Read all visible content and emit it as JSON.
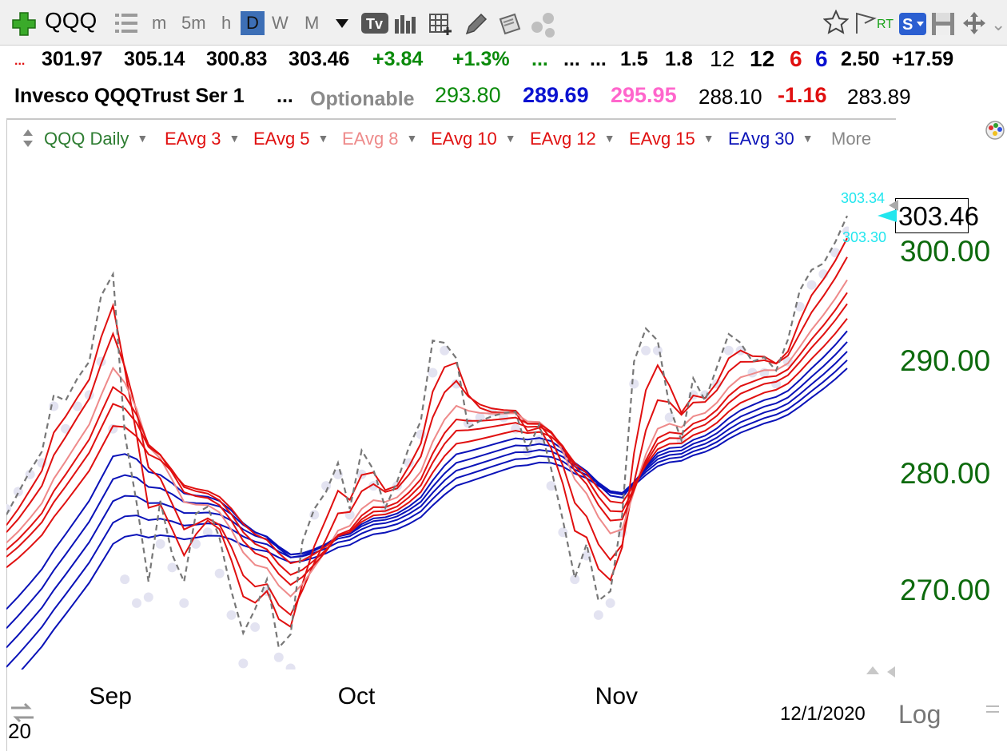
{
  "toolbar": {
    "symbol": "QQQ",
    "intervals": [
      "m",
      "5m",
      "h",
      "D",
      "W",
      "M"
    ],
    "selected_interval": "D",
    "rt_label": "RT",
    "icons": [
      "plus-icon",
      "list-icon",
      "dropdown-icon",
      "tv-icon",
      "bar-chart-icon",
      "grid-add-icon",
      "pencil-icon",
      "notes-icon",
      "dots-icon",
      "star-icon",
      "flag-icon",
      "s-icon",
      "save-icon",
      "move-icon"
    ]
  },
  "quote": {
    "row1": {
      "lead": "...",
      "prev_close": "301.97",
      "high": "305.14",
      "low": "300.83",
      "last": "303.46",
      "change": "+3.84",
      "change_pct": "+1.3%",
      "dots1": "...",
      "dots2": "...",
      "dots3": "...",
      "v1": "1.5",
      "v2": "1.8",
      "v3": "12",
      "v4": "12",
      "v5": "6",
      "v6": "6",
      "v7": "2.50",
      "v8": "+17.59"
    },
    "row2": {
      "name": "Invesco QQQTrust Ser 1",
      "dots": "...",
      "optionable": "Optionable",
      "p1": "293.80",
      "p2": "289.69",
      "p3": "295.95",
      "p4": "288.10",
      "p5": "-1.16",
      "p6": "283.89"
    }
  },
  "legend": {
    "main": "QQQ Daily",
    "items": [
      "EAvg 3",
      "EAvg 5",
      "EAvg 8",
      "EAvg 10",
      "EAvg 12",
      "EAvg 15",
      "EAvg 30"
    ],
    "more": "More"
  },
  "colors": {
    "green": "#0a8a0a",
    "red": "#e01010",
    "salmon": "#ee8a8a",
    "blue": "#0a12b8",
    "pink": "#ff66cc",
    "cyan": "#22e6ee",
    "axis_green": "#0d6a0d"
  },
  "chart_data": {
    "type": "line",
    "title": "QQQ Daily",
    "scale": "log",
    "ylim": [
      263.5,
      308.8
    ],
    "yticks": [
      "300.00",
      "290.00",
      "280.00",
      "270.00"
    ],
    "ytick_values": [
      300,
      290,
      280,
      270
    ],
    "xticks": [
      "Sep",
      "Oct",
      "Nov"
    ],
    "xtick_dates": [
      "2020-09-01",
      "2020-10-01",
      "2020-11-02"
    ],
    "date_label": "12/1/2020",
    "last_price": "303.46",
    "price_tags": [
      "303.34",
      "303.30"
    ],
    "dates": [
      "2020-08-20",
      "2020-08-21",
      "2020-08-24",
      "2020-08-25",
      "2020-08-26",
      "2020-08-27",
      "2020-08-28",
      "2020-08-31",
      "2020-09-01",
      "2020-09-02",
      "2020-09-03",
      "2020-09-04",
      "2020-09-08",
      "2020-09-09",
      "2020-09-10",
      "2020-09-11",
      "2020-09-14",
      "2020-09-15",
      "2020-09-16",
      "2020-09-17",
      "2020-09-18",
      "2020-09-21",
      "2020-09-22",
      "2020-09-23",
      "2020-09-24",
      "2020-09-25",
      "2020-09-28",
      "2020-09-29",
      "2020-09-30",
      "2020-10-01",
      "2020-10-02",
      "2020-10-05",
      "2020-10-06",
      "2020-10-07",
      "2020-10-08",
      "2020-10-09",
      "2020-10-12",
      "2020-10-13",
      "2020-10-14",
      "2020-10-15",
      "2020-10-16",
      "2020-10-19",
      "2020-10-20",
      "2020-10-21",
      "2020-10-22",
      "2020-10-23",
      "2020-10-26",
      "2020-10-27",
      "2020-10-28",
      "2020-10-29",
      "2020-10-30",
      "2020-11-02",
      "2020-11-03",
      "2020-11-04",
      "2020-11-05",
      "2020-11-06",
      "2020-11-09",
      "2020-11-10",
      "2020-11-11",
      "2020-11-12",
      "2020-11-13",
      "2020-11-16",
      "2020-11-17",
      "2020-11-18",
      "2020-11-19",
      "2020-11-20",
      "2020-11-23",
      "2020-11-24",
      "2020-11-25",
      "2020-11-27",
      "2020-11-30",
      "2020-12-01"
    ],
    "close": [
      276.5,
      278.4,
      280.3,
      282.0,
      287.0,
      286.5,
      288.5,
      290.0,
      296.0,
      298.0,
      283.5,
      277.5,
      270.8,
      277.7,
      273.1,
      270.8,
      276.6,
      277.2,
      274.5,
      270.0,
      266.5,
      268.5,
      271.0,
      265.3,
      266.4,
      274.2,
      277.0,
      278.5,
      281.0,
      277.0,
      282.1,
      280.4,
      277.1,
      279.4,
      282.4,
      284.7,
      291.9,
      291.7,
      290.3,
      284.1,
      284.7,
      285.1,
      285.4,
      285.5,
      282.1,
      284.4,
      280.5,
      276.0,
      271.1,
      274.0,
      269.2,
      270.0,
      276.5,
      290.0,
      293.0,
      291.9,
      286.0,
      283.0,
      288.5,
      286.5,
      289.5,
      292.5,
      291.7,
      290.0,
      290.4,
      289.2,
      292.0,
      296.5,
      298.4,
      299.0,
      301.0,
      303.46
    ],
    "volume_dots": [
      277.0,
      278.5,
      280.0,
      281.0,
      286.0,
      284.0,
      286.0,
      287.0,
      290.0,
      284.0,
      271.0,
      269.0,
      269.5,
      274.0,
      272.0,
      269.0,
      274.0,
      275.0,
      271.5,
      268.0,
      264.0,
      267.0,
      270.0,
      264.5,
      263.6,
      273.0,
      276.5,
      279.0,
      280.0,
      276.5,
      280.0,
      279.0,
      277.0,
      279.0,
      281.0,
      283.5,
      289.0,
      291.0,
      288.0,
      284.5,
      285.0,
      285.5,
      285.0,
      284.0,
      282.0,
      283.0,
      279.0,
      275.0,
      271.0,
      273.0,
      268.0,
      269.0,
      275.0,
      288.0,
      291.0,
      291.0,
      285.0,
      283.0,
      287.0,
      287.0,
      288.0,
      291.0,
      291.0,
      289.0,
      289.0,
      288.0,
      290.0,
      295.0,
      297.0,
      298.0,
      300.0,
      302.0
    ],
    "series": [
      {
        "name": "QQQ Daily",
        "periods": 1,
        "color": "#777777",
        "dashed": true
      },
      {
        "name": "EAvg 3",
        "periods": 3,
        "color": "#e01010"
      },
      {
        "name": "EAvg 5",
        "periods": 5,
        "color": "#e01010"
      },
      {
        "name": "EAvg 8",
        "periods": 8,
        "color": "#ee8a8a"
      },
      {
        "name": "EAvg 10",
        "periods": 10,
        "color": "#e01010"
      },
      {
        "name": "EAvg 12",
        "periods": 12,
        "color": "#e01010"
      },
      {
        "name": "EAvg 15",
        "periods": 15,
        "color": "#e01010"
      },
      {
        "name": "EAvg 30",
        "periods": 30,
        "color": "#0a12b8"
      }
    ],
    "blue_ribbon_periods": [
      18,
      21,
      24,
      27,
      30
    ],
    "legend_position": "top-left",
    "grid": false
  }
}
